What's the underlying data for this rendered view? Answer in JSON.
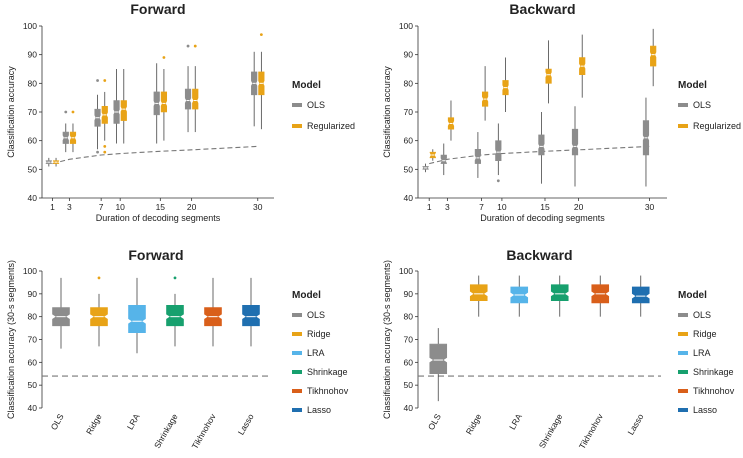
{
  "colors": {
    "OLS": "#8c8c8c",
    "Regularized": "#e8a317",
    "Ridge": "#e8a317",
    "LRA": "#56b4e9",
    "Shrinkage": "#17a06e",
    "Tikhnohov": "#d95f1a",
    "Lasso": "#1f6fb0",
    "reference_line": "#777777"
  },
  "chart_data": [
    {
      "type": "box",
      "title": "Forward",
      "xlabel": "Duration of decoding segments",
      "ylabel": "Classification accuracy",
      "ylim": [
        40,
        100
      ],
      "yticks": [
        "40",
        "50",
        "60",
        "70",
        "80",
        "90",
        "100"
      ],
      "xticks": [
        "1",
        "3",
        "7",
        "10",
        "15",
        "20",
        "30"
      ],
      "x": [
        1,
        3,
        7,
        10,
        15,
        20,
        30
      ],
      "legend": {
        "title": "Model",
        "items": [
          "OLS",
          "Regularized"
        ]
      },
      "chance_line": {
        "x": [
          1,
          3,
          7,
          10,
          15,
          20,
          30
        ],
        "y": [
          52,
          53.5,
          55,
          55.5,
          56.3,
          56.8,
          58
        ]
      },
      "series": [
        {
          "name": "OLS",
          "boxes": [
            {
              "x": 1,
              "min": 51,
              "q1": 52,
              "med": 52.5,
              "q3": 53,
              "max": 54,
              "outliers": []
            },
            {
              "x": 3,
              "min": 56,
              "q1": 59,
              "med": 61,
              "q3": 63,
              "max": 66,
              "outliers": [
                70
              ]
            },
            {
              "x": 7,
              "min": 57,
              "q1": 65,
              "med": 68,
              "q3": 71,
              "max": 76,
              "outliers": [
                81,
                56
              ]
            },
            {
              "x": 10,
              "min": 59,
              "q1": 66,
              "med": 70,
              "q3": 74,
              "max": 85,
              "outliers": []
            },
            {
              "x": 15,
              "min": 59,
              "q1": 69,
              "med": 73,
              "q3": 77,
              "max": 87,
              "outliers": []
            },
            {
              "x": 20,
              "min": 63,
              "q1": 71,
              "med": 74,
              "q3": 78,
              "max": 86,
              "outliers": [
                93
              ]
            },
            {
              "x": 30,
              "min": 65,
              "q1": 76,
              "med": 80,
              "q3": 84,
              "max": 91,
              "outliers": []
            }
          ]
        },
        {
          "name": "Regularized",
          "boxes": [
            {
              "x": 1,
              "min": 51,
              "q1": 52,
              "med": 52.5,
              "q3": 53,
              "max": 54,
              "outliers": []
            },
            {
              "x": 3,
              "min": 56,
              "q1": 59,
              "med": 61,
              "q3": 63,
              "max": 66,
              "outliers": [
                70
              ]
            },
            {
              "x": 7,
              "min": 60,
              "q1": 66,
              "med": 69,
              "q3": 72,
              "max": 77,
              "outliers": [
                81,
                58,
                56
              ]
            },
            {
              "x": 10,
              "min": 59,
              "q1": 67,
              "med": 71,
              "q3": 74,
              "max": 85,
              "outliers": []
            },
            {
              "x": 15,
              "min": 60,
              "q1": 70,
              "med": 73,
              "q3": 77,
              "max": 85,
              "outliers": [
                89
              ]
            },
            {
              "x": 20,
              "min": 63,
              "q1": 71,
              "med": 74,
              "q3": 78,
              "max": 86,
              "outliers": [
                93
              ]
            },
            {
              "x": 30,
              "min": 64,
              "q1": 76,
              "med": 80,
              "q3": 84,
              "max": 91,
              "outliers": [
                97
              ]
            }
          ]
        }
      ]
    },
    {
      "type": "box",
      "title": "Backward",
      "xlabel": "Duration of decoding segments",
      "ylabel": "Classification accuracy",
      "ylim": [
        40,
        100
      ],
      "yticks": [
        "40",
        "50",
        "60",
        "70",
        "80",
        "90",
        "100"
      ],
      "xticks": [
        "1",
        "3",
        "7",
        "10",
        "15",
        "20",
        "30"
      ],
      "x": [
        1,
        3,
        7,
        10,
        15,
        20,
        30
      ],
      "legend": {
        "title": "Model",
        "items": [
          "OLS",
          "Regularized"
        ]
      },
      "chance_line": {
        "x": [
          1,
          3,
          7,
          10,
          15,
          20,
          30
        ],
        "y": [
          52,
          53.5,
          55,
          55.5,
          56.3,
          56.8,
          58
        ]
      },
      "series": [
        {
          "name": "OLS",
          "boxes": [
            {
              "x": 1,
              "min": 49,
              "q1": 50,
              "med": 50.5,
              "q3": 51,
              "max": 52,
              "outliers": []
            },
            {
              "x": 3,
              "min": 48,
              "q1": 52,
              "med": 53,
              "q3": 55,
              "max": 59,
              "outliers": []
            },
            {
              "x": 7,
              "min": 47,
              "q1": 52,
              "med": 54,
              "q3": 57,
              "max": 63,
              "outliers": []
            },
            {
              "x": 10,
              "min": 48,
              "q1": 53,
              "med": 56,
              "q3": 60,
              "max": 66,
              "outliers": [
                46
              ]
            },
            {
              "x": 15,
              "min": 45,
              "q1": 55,
              "med": 58,
              "q3": 62,
              "max": 70,
              "outliers": []
            },
            {
              "x": 20,
              "min": 44,
              "q1": 55,
              "med": 58,
              "q3": 64,
              "max": 72,
              "outliers": []
            },
            {
              "x": 30,
              "min": 44,
              "q1": 55,
              "med": 61,
              "q3": 67,
              "max": 75,
              "outliers": []
            }
          ]
        },
        {
          "name": "Regularized",
          "boxes": [
            {
              "x": 1,
              "min": 53,
              "q1": 54,
              "med": 55,
              "q3": 56,
              "max": 57,
              "outliers": []
            },
            {
              "x": 3,
              "min": 60,
              "q1": 64,
              "med": 66,
              "q3": 68,
              "max": 74,
              "outliers": []
            },
            {
              "x": 7,
              "min": 67,
              "q1": 72,
              "med": 74.5,
              "q3": 77,
              "max": 86,
              "outliers": []
            },
            {
              "x": 10,
              "min": 70,
              "q1": 76,
              "med": 78.5,
              "q3": 81,
              "max": 89,
              "outliers": []
            },
            {
              "x": 15,
              "min": 73,
              "q1": 80,
              "med": 83,
              "q3": 85,
              "max": 95,
              "outliers": []
            },
            {
              "x": 20,
              "min": 75,
              "q1": 83,
              "med": 86,
              "q3": 89,
              "max": 97,
              "outliers": []
            },
            {
              "x": 30,
              "min": 79,
              "q1": 86,
              "med": 90,
              "q3": 93,
              "max": 99,
              "outliers": []
            }
          ]
        }
      ]
    },
    {
      "type": "box",
      "title": "Forward",
      "xlabel": "",
      "ylabel": "Classification accuracy (30-s segments)",
      "ylim": [
        40,
        100
      ],
      "yticks": [
        "40",
        "50",
        "60",
        "70",
        "80",
        "90",
        "100"
      ],
      "categories": [
        "OLS",
        "Ridge",
        "LRA",
        "Shrinkage",
        "Tikhnohov",
        "Lasso"
      ],
      "chance_level": 54,
      "legend": {
        "title": "Model",
        "items": [
          "OLS",
          "Ridge",
          "LRA",
          "Shrinkage",
          "Tikhnohov",
          "Lasso"
        ]
      },
      "boxes": [
        {
          "name": "OLS",
          "min": 66,
          "q1": 76,
          "med": 80,
          "q3": 84,
          "max": 97,
          "outliers": []
        },
        {
          "name": "Ridge",
          "min": 67,
          "q1": 76,
          "med": 80,
          "q3": 84,
          "max": 90,
          "outliers": [
            97
          ]
        },
        {
          "name": "LRA",
          "min": 64,
          "q1": 73,
          "med": 78,
          "q3": 85,
          "max": 97,
          "outliers": []
        },
        {
          "name": "Shrinkage",
          "min": 67,
          "q1": 76,
          "med": 80,
          "q3": 85,
          "max": 90,
          "outliers": [
            97
          ]
        },
        {
          "name": "Tikhnohov",
          "min": 67,
          "q1": 76,
          "med": 80,
          "q3": 84,
          "max": 97,
          "outliers": []
        },
        {
          "name": "Lasso",
          "min": 67,
          "q1": 76,
          "med": 80,
          "q3": 85,
          "max": 97,
          "outliers": []
        }
      ]
    },
    {
      "type": "box",
      "title": "Backward",
      "xlabel": "",
      "ylabel": "Classification accuracy (30-s segments)",
      "ylim": [
        40,
        100
      ],
      "yticks": [
        "40",
        "50",
        "60",
        "70",
        "80",
        "90",
        "100"
      ],
      "categories": [
        "OLS",
        "Ridge",
        "LRA",
        "Shrinkage",
        "Tikhnohov",
        "Lasso"
      ],
      "chance_level": 54,
      "legend": {
        "title": "Model",
        "items": [
          "OLS",
          "Ridge",
          "LRA",
          "Shrinkage",
          "Tikhnohov",
          "Lasso"
        ]
      },
      "boxes": [
        {
          "name": "OLS",
          "min": 43,
          "q1": 55,
          "med": 61,
          "q3": 68,
          "max": 75,
          "outliers": []
        },
        {
          "name": "Ridge",
          "min": 80,
          "q1": 87,
          "med": 90,
          "q3": 94,
          "max": 98,
          "outliers": []
        },
        {
          "name": "LRA",
          "min": 80,
          "q1": 86,
          "med": 89.5,
          "q3": 93,
          "max": 98,
          "outliers": []
        },
        {
          "name": "Shrinkage",
          "min": 80,
          "q1": 87,
          "med": 90,
          "q3": 94,
          "max": 98,
          "outliers": []
        },
        {
          "name": "Tikhnohov",
          "min": 80,
          "q1": 86,
          "med": 90,
          "q3": 94,
          "max": 98,
          "outliers": []
        },
        {
          "name": "Lasso",
          "min": 80,
          "q1": 86,
          "med": 89,
          "q3": 93,
          "max": 98,
          "outliers": []
        }
      ]
    }
  ]
}
